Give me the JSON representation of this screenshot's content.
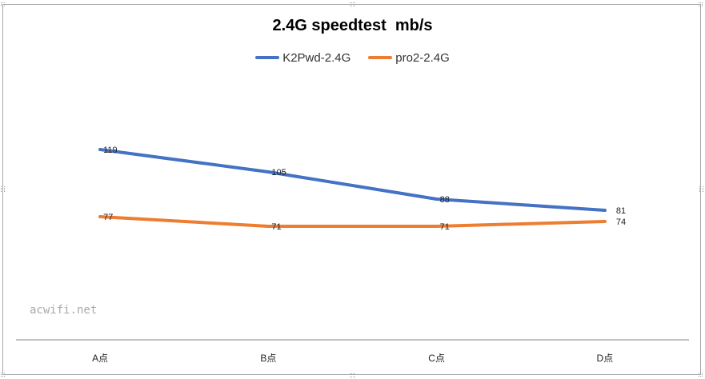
{
  "chart_data": {
    "type": "line",
    "title": "2.4G speedtest  mb/s",
    "categories": [
      "A点",
      "B点",
      "C点",
      "D点"
    ],
    "series": [
      {
        "name": "K2Pwd-2.4G",
        "color": "#4472C4",
        "values": [
          119,
          105,
          88,
          81
        ]
      },
      {
        "name": "pro2-2.4G",
        "color": "#ED7D31",
        "values": [
          77,
          71,
          71,
          74
        ]
      }
    ],
    "xlabel": "",
    "ylabel": "",
    "ylim": [
      0,
      180
    ],
    "grid": false,
    "legend_position": "top"
  },
  "watermark": "acwifi.net"
}
